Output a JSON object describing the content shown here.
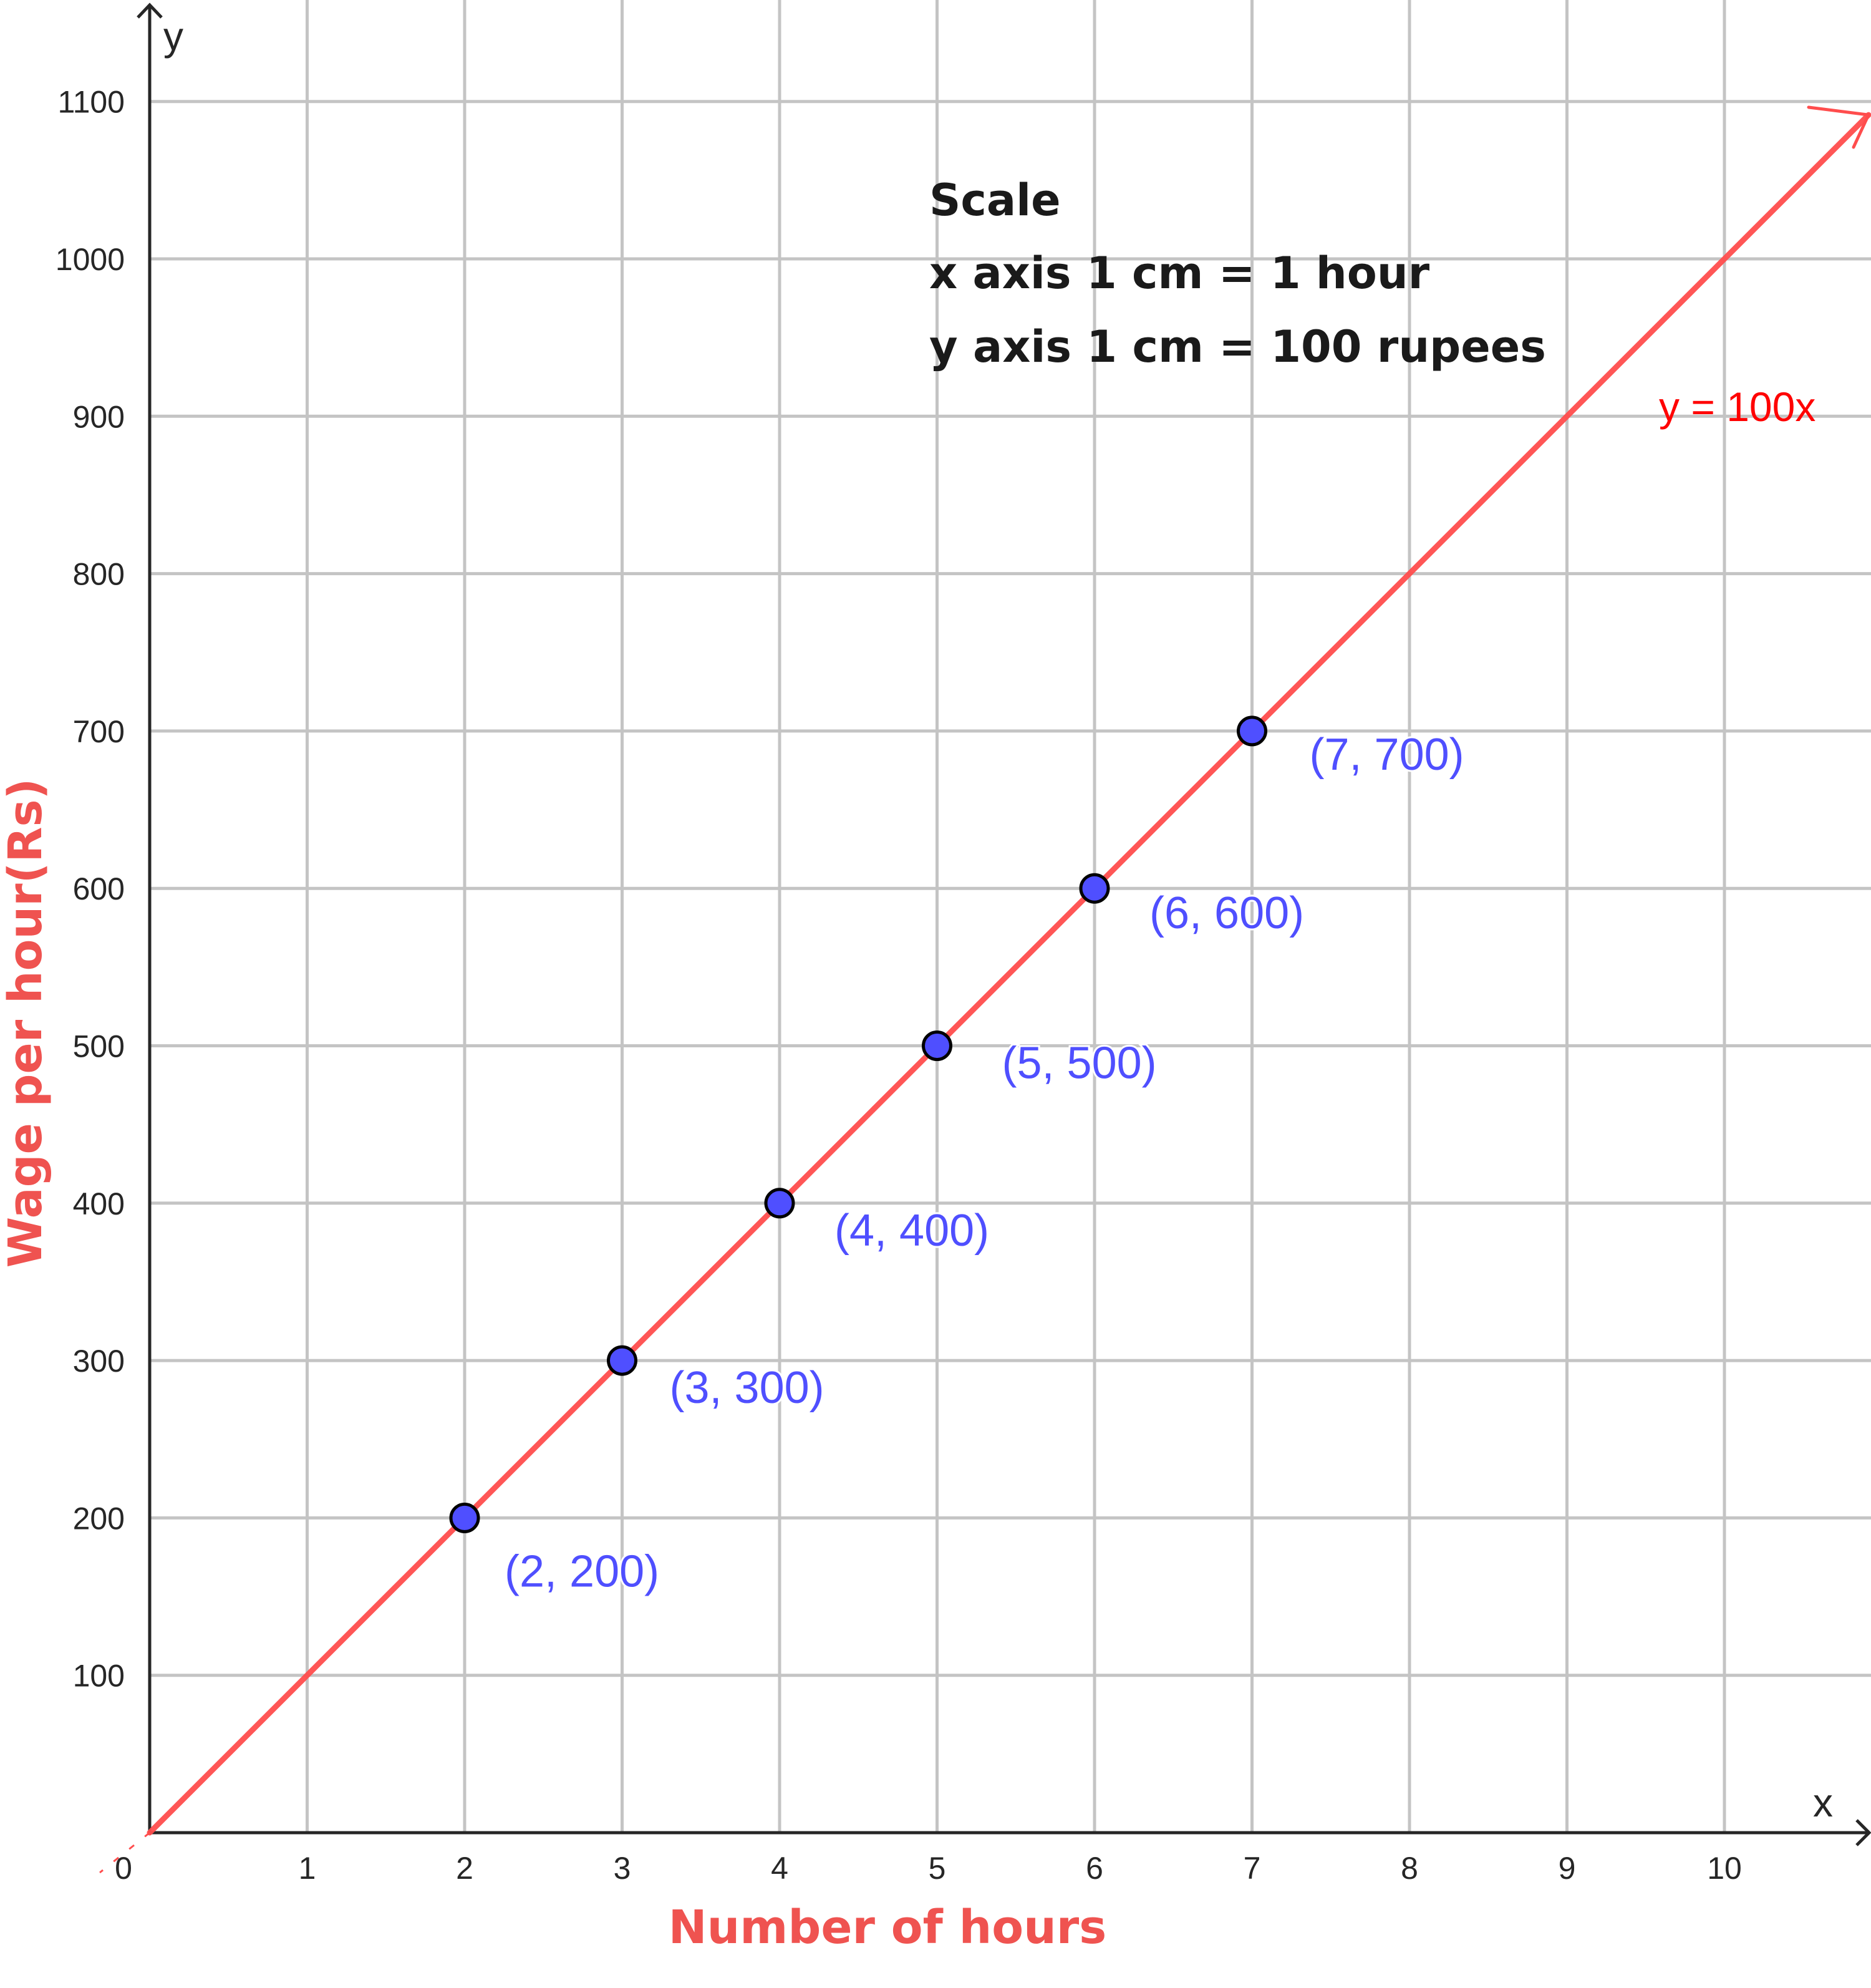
{
  "chart_data": {
    "type": "line",
    "title": "",
    "xlabel": "Number of hours",
    "ylabel": "Wage per hour(Rs)",
    "x_axis_symbol": "x",
    "y_axis_symbol": "y",
    "xlim": [
      0,
      10.9
    ],
    "ylim": [
      0,
      1100
    ],
    "x_ticks": [
      0,
      1,
      2,
      3,
      4,
      5,
      6,
      7,
      8,
      9,
      10
    ],
    "y_ticks": [
      100,
      200,
      300,
      400,
      500,
      600,
      700,
      800,
      900,
      1000,
      1100
    ],
    "grid": true,
    "line": {
      "name": "y = 100x",
      "slope": 100,
      "intercept": 0,
      "color": "#ff4d4d"
    },
    "series": [
      {
        "name": "Points",
        "color": "#4f4fff",
        "points": [
          {
            "x": 2,
            "y": 200,
            "label": "(2, 200)"
          },
          {
            "x": 3,
            "y": 300,
            "label": "(3, 300)"
          },
          {
            "x": 4,
            "y": 400,
            "label": "(4, 400)"
          },
          {
            "x": 5,
            "y": 500,
            "label": "(5, 500)"
          },
          {
            "x": 6,
            "y": 600,
            "label": "(6, 600)"
          },
          {
            "x": 7,
            "y": 700,
            "label": "(7, 700)"
          }
        ]
      }
    ],
    "annotations": {
      "scale_title": "Scale",
      "scale_x": "x axis 1 cm = 1 hour",
      "scale_y": "y axis 1 cm = 100 rupees"
    }
  },
  "colors": {
    "axis": "#262626",
    "grid": "#c4c4c4",
    "line": "#ff4d4d",
    "point_fill": "#4f4fff",
    "point_label": "#4f4fff",
    "equation_label": "#ff0000",
    "axis_title": "#ef5350"
  }
}
